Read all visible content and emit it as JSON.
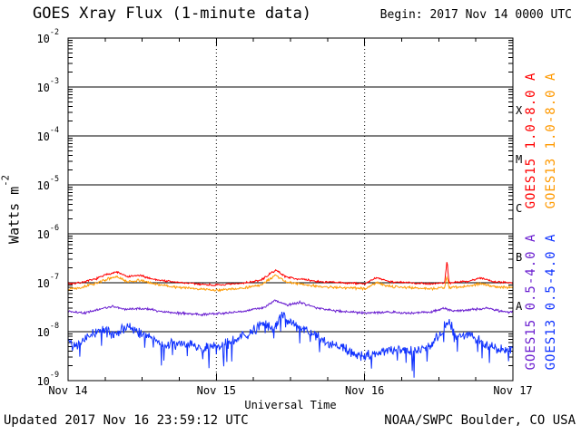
{
  "footer": {
    "updated": "Updated 2017 Nov 16 23:59:12 UTC",
    "agency": "NOAA/SWPC Boulder, CO USA"
  },
  "chart_data": {
    "type": "line",
    "title": "GOES Xray Flux (1-minute data)",
    "begin_label": "Begin: 2017 Nov 14 0000 UTC",
    "xlabel": "Universal Time",
    "ylabel_base": "Watts m",
    "ylabel_exp": "-2",
    "x_domain_days": [
      0,
      3
    ],
    "y_log_domain": [
      -9,
      -2
    ],
    "x_ticks": [
      {
        "day": 0,
        "label": "Nov 14"
      },
      {
        "day": 1,
        "label": "Nov 15"
      },
      {
        "day": 2,
        "label": "Nov 16"
      },
      {
        "day": 3,
        "label": "Nov 17"
      }
    ],
    "y_ticks": [
      {
        "exp": -2,
        "base": "10",
        "exp_label": "-2"
      },
      {
        "exp": -3,
        "base": "10",
        "exp_label": "-3"
      },
      {
        "exp": -4,
        "base": "10",
        "exp_label": "-4"
      },
      {
        "exp": -5,
        "base": "10",
        "exp_label": "-5"
      },
      {
        "exp": -6,
        "base": "10",
        "exp_label": "-6"
      },
      {
        "exp": -7,
        "base": "10",
        "exp_label": "-7"
      },
      {
        "exp": -8,
        "base": "10",
        "exp_label": "-8"
      },
      {
        "exp": -9,
        "base": "10",
        "exp_label": "-9"
      }
    ],
    "flare_classes": [
      {
        "label": "X",
        "log_y": -3.5
      },
      {
        "label": "M",
        "log_y": -4.5
      },
      {
        "label": "C",
        "log_y": -5.5
      },
      {
        "label": "B",
        "log_y": -6.5
      },
      {
        "label": "A",
        "log_y": -7.5
      }
    ],
    "grid": {
      "horizontal_decades": [
        -3,
        -4,
        -5,
        -6,
        -7,
        -8
      ],
      "vertical_dotted_days": [
        1,
        2
      ]
    },
    "colors": {
      "axis": "#000000",
      "background": "#ffffff"
    },
    "series": [
      {
        "name": "GOES15 1.0-8.0 A",
        "slug": "goes15-long",
        "color": "#ff0000",
        "seed": 7,
        "noise": 0.025,
        "spike_prob": 0,
        "spike_depth": 0,
        "keypoints": [
          [
            0,
            -7.02
          ],
          [
            0.08,
            -7.0
          ],
          [
            0.18,
            -6.93
          ],
          [
            0.27,
            -6.82
          ],
          [
            0.33,
            -6.78
          ],
          [
            0.4,
            -6.88
          ],
          [
            0.48,
            -6.85
          ],
          [
            0.58,
            -6.93
          ],
          [
            0.7,
            -6.98
          ],
          [
            0.85,
            -7.02
          ],
          [
            1.0,
            -7.05
          ],
          [
            1.15,
            -7.02
          ],
          [
            1.3,
            -6.95
          ],
          [
            1.4,
            -6.74
          ],
          [
            1.47,
            -6.88
          ],
          [
            1.55,
            -6.92
          ],
          [
            1.7,
            -6.98
          ],
          [
            1.85,
            -7.0
          ],
          [
            2.0,
            -7.02
          ],
          [
            2.08,
            -6.9
          ],
          [
            2.18,
            -6.98
          ],
          [
            2.3,
            -7.0
          ],
          [
            2.45,
            -7.02
          ],
          [
            2.54,
            -7.0
          ],
          [
            2.555,
            -6.55
          ],
          [
            2.57,
            -7.0
          ],
          [
            2.7,
            -6.97
          ],
          [
            2.78,
            -6.9
          ],
          [
            2.88,
            -6.98
          ],
          [
            3.0,
            -7.0
          ]
        ]
      },
      {
        "name": "GOES13 1.0-8.0 A",
        "slug": "goes13-long",
        "color": "#ff9900",
        "seed": 13,
        "noise": 0.03,
        "spike_prob": 0,
        "spike_depth": 0,
        "keypoints": [
          [
            0,
            -7.12
          ],
          [
            0.08,
            -7.1
          ],
          [
            0.18,
            -7.02
          ],
          [
            0.27,
            -6.92
          ],
          [
            0.33,
            -6.88
          ],
          [
            0.4,
            -6.98
          ],
          [
            0.48,
            -6.95
          ],
          [
            0.58,
            -7.02
          ],
          [
            0.7,
            -7.08
          ],
          [
            0.85,
            -7.12
          ],
          [
            1.0,
            -7.15
          ],
          [
            1.15,
            -7.12
          ],
          [
            1.3,
            -7.05
          ],
          [
            1.4,
            -6.85
          ],
          [
            1.47,
            -6.98
          ],
          [
            1.55,
            -7.02
          ],
          [
            1.7,
            -7.08
          ],
          [
            1.85,
            -7.1
          ],
          [
            2.0,
            -7.12
          ],
          [
            2.08,
            -7.0
          ],
          [
            2.18,
            -7.08
          ],
          [
            2.3,
            -7.1
          ],
          [
            2.45,
            -7.12
          ],
          [
            2.54,
            -7.1
          ],
          [
            2.555,
            -6.85
          ],
          [
            2.57,
            -7.1
          ],
          [
            2.7,
            -7.07
          ],
          [
            2.78,
            -7.02
          ],
          [
            2.88,
            -7.08
          ],
          [
            3.0,
            -7.1
          ]
        ]
      },
      {
        "name": "GOES15 0.5-4.0 A",
        "slug": "goes15-short",
        "color": "#6a1fd0",
        "seed": 21,
        "noise": 0.03,
        "spike_prob": 0,
        "spike_depth": 0,
        "keypoints": [
          [
            0,
            -7.58
          ],
          [
            0.1,
            -7.62
          ],
          [
            0.2,
            -7.55
          ],
          [
            0.3,
            -7.48
          ],
          [
            0.38,
            -7.55
          ],
          [
            0.5,
            -7.52
          ],
          [
            0.62,
            -7.58
          ],
          [
            0.75,
            -7.62
          ],
          [
            0.9,
            -7.65
          ],
          [
            1.05,
            -7.62
          ],
          [
            1.2,
            -7.58
          ],
          [
            1.32,
            -7.5
          ],
          [
            1.4,
            -7.36
          ],
          [
            1.48,
            -7.46
          ],
          [
            1.56,
            -7.4
          ],
          [
            1.68,
            -7.52
          ],
          [
            1.82,
            -7.58
          ],
          [
            2.0,
            -7.62
          ],
          [
            2.15,
            -7.6
          ],
          [
            2.3,
            -7.62
          ],
          [
            2.45,
            -7.6
          ],
          [
            2.54,
            -7.52
          ],
          [
            2.6,
            -7.58
          ],
          [
            2.72,
            -7.55
          ],
          [
            2.82,
            -7.52
          ],
          [
            2.92,
            -7.58
          ],
          [
            3.0,
            -7.6
          ]
        ]
      },
      {
        "name": "GOES13 0.5-4.0 A",
        "slug": "goes13-short",
        "color": "#1133ff",
        "seed": 42,
        "noise": 0.13,
        "spike_prob": 0.07,
        "spike_depth": 0.45,
        "keypoints": [
          [
            0,
            -8.15
          ],
          [
            0.06,
            -8.3
          ],
          [
            0.14,
            -8.1
          ],
          [
            0.22,
            -7.95
          ],
          [
            0.3,
            -8.05
          ],
          [
            0.38,
            -7.92
          ],
          [
            0.46,
            -7.98
          ],
          [
            0.55,
            -8.12
          ],
          [
            0.65,
            -8.28
          ],
          [
            0.78,
            -8.25
          ],
          [
            0.9,
            -8.35
          ],
          [
            1.0,
            -8.3
          ],
          [
            1.1,
            -8.22
          ],
          [
            1.22,
            -8.05
          ],
          [
            1.3,
            -7.85
          ],
          [
            1.38,
            -7.95
          ],
          [
            1.44,
            -7.68
          ],
          [
            1.52,
            -7.85
          ],
          [
            1.6,
            -7.95
          ],
          [
            1.7,
            -8.15
          ],
          [
            1.82,
            -8.3
          ],
          [
            1.92,
            -8.45
          ],
          [
            2.0,
            -8.5
          ],
          [
            2.1,
            -8.42
          ],
          [
            2.2,
            -8.35
          ],
          [
            2.32,
            -8.42
          ],
          [
            2.45,
            -8.25
          ],
          [
            2.52,
            -8.0
          ],
          [
            2.56,
            -7.78
          ],
          [
            2.62,
            -8.1
          ],
          [
            2.72,
            -8.05
          ],
          [
            2.8,
            -8.25
          ],
          [
            2.9,
            -8.38
          ],
          [
            3.0,
            -8.35
          ]
        ]
      }
    ]
  }
}
